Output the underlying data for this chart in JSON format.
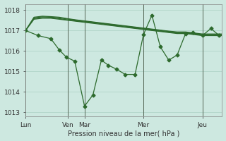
{
  "background_color": "#cde8e0",
  "grid_color": "#b0d4c8",
  "line_color": "#2d6a2d",
  "xlabel": "Pression niveau de la mer( hPa )",
  "ylim": [
    1012.8,
    1018.3
  ],
  "yticks": [
    1013,
    1014,
    1015,
    1016,
    1017,
    1018
  ],
  "vline_positions": [
    0,
    60,
    84,
    168,
    252
  ],
  "xtick_labels": [
    "Lun",
    "Ven",
    "Mar",
    "Mer",
    "Jeu"
  ],
  "xtick_positions": [
    0,
    60,
    84,
    168,
    252
  ],
  "xlim": [
    0,
    280
  ],
  "series_smooth": [
    {
      "x": [
        0,
        12,
        24,
        36,
        48,
        60,
        72,
        84,
        96,
        108,
        120,
        132,
        144,
        156,
        168,
        180,
        192,
        204,
        216,
        228,
        240,
        252,
        264,
        280
      ],
      "y": [
        1017.0,
        1017.55,
        1017.6,
        1017.6,
        1017.55,
        1017.5,
        1017.45,
        1017.4,
        1017.35,
        1017.3,
        1017.25,
        1017.2,
        1017.15,
        1017.1,
        1017.05,
        1017.0,
        1016.95,
        1016.9,
        1016.85,
        1016.85,
        1016.8,
        1016.75,
        1016.75,
        1016.75
      ]
    },
    {
      "x": [
        0,
        12,
        24,
        36,
        48,
        60,
        72,
        84,
        96,
        108,
        120,
        132,
        144,
        156,
        168,
        180,
        192,
        204,
        216,
        228,
        240,
        252,
        264,
        280
      ],
      "y": [
        1017.0,
        1017.58,
        1017.63,
        1017.62,
        1017.58,
        1017.52,
        1017.47,
        1017.42,
        1017.38,
        1017.33,
        1017.27,
        1017.22,
        1017.17,
        1017.12,
        1017.07,
        1017.02,
        1016.97,
        1016.92,
        1016.88,
        1016.88,
        1016.83,
        1016.78,
        1016.78,
        1016.78
      ]
    },
    {
      "x": [
        0,
        12,
        24,
        36,
        48,
        60,
        72,
        84,
        96,
        108,
        120,
        132,
        144,
        156,
        168,
        180,
        192,
        204,
        216,
        228,
        240,
        252,
        264,
        280
      ],
      "y": [
        1017.0,
        1017.62,
        1017.67,
        1017.65,
        1017.62,
        1017.56,
        1017.5,
        1017.45,
        1017.4,
        1017.35,
        1017.3,
        1017.25,
        1017.2,
        1017.15,
        1017.1,
        1017.05,
        1017.0,
        1016.95,
        1016.9,
        1016.9,
        1016.85,
        1016.8,
        1016.8,
        1016.8
      ]
    },
    {
      "x": [
        0,
        12,
        24,
        36,
        48,
        60,
        72,
        84,
        96,
        108,
        120,
        132,
        144,
        156,
        168,
        180,
        192,
        204,
        216,
        228,
        240,
        252,
        264,
        280
      ],
      "y": [
        1017.0,
        1017.65,
        1017.7,
        1017.68,
        1017.65,
        1017.58,
        1017.52,
        1017.47,
        1017.42,
        1017.37,
        1017.32,
        1017.27,
        1017.22,
        1017.17,
        1017.12,
        1017.07,
        1017.02,
        1016.97,
        1016.93,
        1016.93,
        1016.88,
        1016.83,
        1016.83,
        1016.83
      ]
    }
  ],
  "series_volatile": {
    "x": [
      0,
      18,
      36,
      48,
      58,
      70,
      84,
      96,
      108,
      118,
      130,
      142,
      156,
      168,
      180,
      192,
      204,
      216,
      228,
      238,
      252,
      264,
      276
    ],
    "y": [
      1017.0,
      1016.75,
      1016.6,
      1016.05,
      1015.7,
      1015.5,
      1013.3,
      1013.85,
      1015.55,
      1015.3,
      1015.1,
      1014.85,
      1014.85,
      1016.8,
      1017.75,
      1016.2,
      1015.55,
      1015.8,
      1016.85,
      1016.9,
      1016.75,
      1017.1,
      1016.75
    ]
  }
}
